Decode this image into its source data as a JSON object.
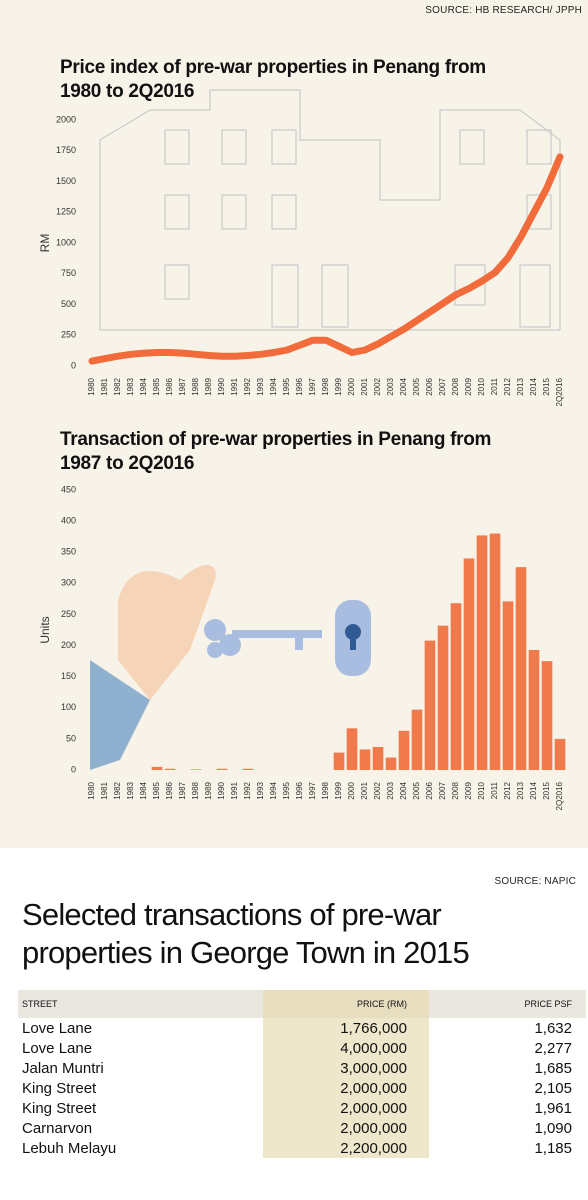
{
  "source_top": "SOURCE: HB RESEARCH/  JPPH",
  "chart_data": [
    {
      "type": "line",
      "title": "Price index of pre-war properties in Penang from 1980 to 2Q2016",
      "ylabel": "RM",
      "categories": [
        "1980",
        "1981",
        "1982",
        "1983",
        "1984",
        "1985",
        "1986",
        "1987",
        "1988",
        "1989",
        "1990",
        "1991",
        "1992",
        "1993",
        "1994",
        "1995",
        "1996",
        "1997",
        "1998",
        "1999",
        "2000",
        "2001",
        "2002",
        "2003",
        "2004",
        "2005",
        "2006",
        "2007",
        "2008",
        "2009",
        "2010",
        "2011",
        "2012",
        "2013",
        "2014",
        "2015",
        "2Q2016"
      ],
      "values": [
        40,
        60,
        80,
        95,
        105,
        110,
        110,
        105,
        95,
        85,
        80,
        80,
        85,
        95,
        110,
        130,
        170,
        210,
        210,
        160,
        110,
        130,
        180,
        240,
        300,
        370,
        440,
        510,
        580,
        630,
        690,
        760,
        880,
        1050,
        1250,
        1450,
        1700
      ],
      "color": "#f26b3a",
      "ylim": [
        0,
        2000
      ],
      "yticks": [
        0,
        250,
        500,
        750,
        1000,
        1250,
        1500,
        1750,
        2000
      ]
    },
    {
      "type": "bar",
      "title": "Transaction of pre-war properties in Penang from 1987 to 2Q2016",
      "ylabel": "Units",
      "categories": [
        "1980",
        "1981",
        "1982",
        "1983",
        "1984",
        "1985",
        "1986",
        "1987",
        "1988",
        "1989",
        "1990",
        "1991",
        "1992",
        "1993",
        "1994",
        "1995",
        "1996",
        "1997",
        "1998",
        "1999",
        "2000",
        "2001",
        "2002",
        "2003",
        "2004",
        "2005",
        "2006",
        "2007",
        "2008",
        "2009",
        "2010",
        "2011",
        "2012",
        "2013",
        "2014",
        "2015",
        "2Q2016"
      ],
      "values": [
        0,
        0,
        0,
        0,
        0,
        5,
        2,
        0,
        1,
        0,
        2,
        0,
        2,
        0,
        0,
        0,
        0,
        0,
        0,
        28,
        67,
        33,
        37,
        20,
        63,
        97,
        208,
        232,
        268,
        340,
        377,
        380,
        271,
        326,
        193,
        175,
        50
      ],
      "color": "#f07a4c",
      "ylim": [
        0,
        450
      ],
      "yticks": [
        0,
        50,
        100,
        150,
        200,
        250,
        300,
        350,
        400,
        450
      ]
    }
  ],
  "source_bottom": "SOURCE: NAPIC",
  "table": {
    "title": "Selected transactions of pre-war properties in George Town in 2015",
    "columns": [
      "STREET",
      "PRICE (RM)",
      "PRICE PSF"
    ],
    "rows": [
      [
        "Love Lane",
        "1,766,000",
        "1,632"
      ],
      [
        "Love Lane",
        "4,000,000",
        "2,277"
      ],
      [
        "Jalan Muntri",
        "3,000,000",
        "1,685"
      ],
      [
        "King Street",
        "2,000,000",
        "2,105"
      ],
      [
        "King Street",
        "2,000,000",
        "1,961"
      ],
      [
        "Carnarvon",
        "2,000,000",
        "1,090"
      ],
      [
        "Lebuh Melayu",
        "2,200,000",
        "1,185"
      ]
    ]
  }
}
